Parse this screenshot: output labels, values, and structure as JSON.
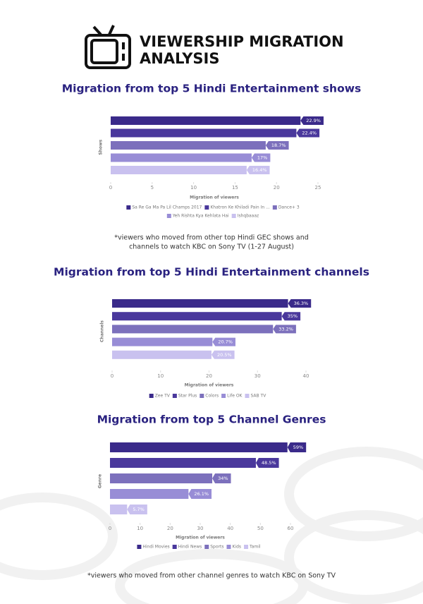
{
  "header": {
    "title_lines": [
      "VIEWERSHIP MIGRATION",
      "ANALYSIS"
    ]
  },
  "chart_data": [
    {
      "type": "bar",
      "orientation": "horizontal",
      "title": "Migration from top 5 Hindi  Entertainment shows",
      "x_label": "Migration of viewers",
      "y_label": "Shows",
      "xlim": [
        0,
        25
      ],
      "xticks": [
        0,
        5,
        10,
        15,
        20,
        25
      ],
      "series": [
        {
          "name": "Sa Re Ga Ma Pa Lil Champs 2017",
          "color": "#3a2a8a",
          "values": [
            22.9
          ],
          "value_labels": [
            "22.9%"
          ]
        },
        {
          "name": "Khatron Ke Khiladi Pain In ...",
          "color": "#4a389c",
          "values": [
            22.4
          ],
          "value_labels": [
            "22.4%"
          ]
        },
        {
          "name": "Dance+ 3",
          "color": "#7c70bc",
          "values": [
            18.7
          ],
          "value_labels": [
            "18.7%"
          ]
        },
        {
          "name": "Yeh Rishta Kya Kehlata Hai",
          "color": "#988dd6",
          "values": [
            17
          ],
          "value_labels": [
            "17%"
          ]
        },
        {
          "name": "Ishqbaaaz",
          "color": "#c9c1ef",
          "values": [
            16.4
          ],
          "value_labels": [
            "16.4%"
          ]
        }
      ]
    },
    {
      "type": "bar",
      "orientation": "horizontal",
      "title": "Migration from top 5 Hindi Entertainment channels",
      "x_label": "Migration of viewers",
      "y_label": "Channels",
      "xlim": [
        0,
        40
      ],
      "xticks": [
        0,
        10,
        20,
        30,
        40
      ],
      "series": [
        {
          "name": "Zee TV",
          "color": "#3a2a8a",
          "values": [
            36.3
          ],
          "value_labels": [
            "36.3%"
          ]
        },
        {
          "name": "Star Plus",
          "color": "#4a389c",
          "values": [
            35
          ],
          "value_labels": [
            "35%"
          ]
        },
        {
          "name": "Colors",
          "color": "#7c70bc",
          "values": [
            33.2
          ],
          "value_labels": [
            "33.2%"
          ]
        },
        {
          "name": "Life OK",
          "color": "#988dd6",
          "values": [
            20.7
          ],
          "value_labels": [
            "20.7%"
          ]
        },
        {
          "name": "SAB TV",
          "color": "#c9c1ef",
          "values": [
            20.5
          ],
          "value_labels": [
            "20.5%"
          ]
        }
      ]
    },
    {
      "type": "bar",
      "orientation": "horizontal",
      "title": "Migration from top 5 Channel Genres",
      "x_label": "Migration of viewers",
      "y_label": "Genre",
      "xlim": [
        0,
        60
      ],
      "xticks": [
        0,
        10,
        20,
        30,
        40,
        50,
        60
      ],
      "series": [
        {
          "name": "Hindi Movies",
          "color": "#3a2a8a",
          "values": [
            59
          ],
          "value_labels": [
            "59%"
          ]
        },
        {
          "name": "Hindi News",
          "color": "#4a389c",
          "values": [
            48.5
          ],
          "value_labels": [
            "48.5%"
          ]
        },
        {
          "name": "Sports",
          "color": "#7c70bc",
          "values": [
            34
          ],
          "value_labels": [
            "34%"
          ]
        },
        {
          "name": "Kids",
          "color": "#988dd6",
          "values": [
            26.1
          ],
          "value_labels": [
            "26.1%"
          ]
        },
        {
          "name": "Tamil",
          "color": "#c9c1ef",
          "values": [
            5.7
          ],
          "value_labels": [
            "5.7%"
          ]
        }
      ]
    }
  ],
  "notes": [
    [
      "*viewers who moved from other top Hindi GEC shows and",
      "channels to watch KBC on Sony TV (1-27 August)"
    ],
    [
      "*viewers who moved from other channel genres to watch KBC on Sony TV"
    ]
  ]
}
